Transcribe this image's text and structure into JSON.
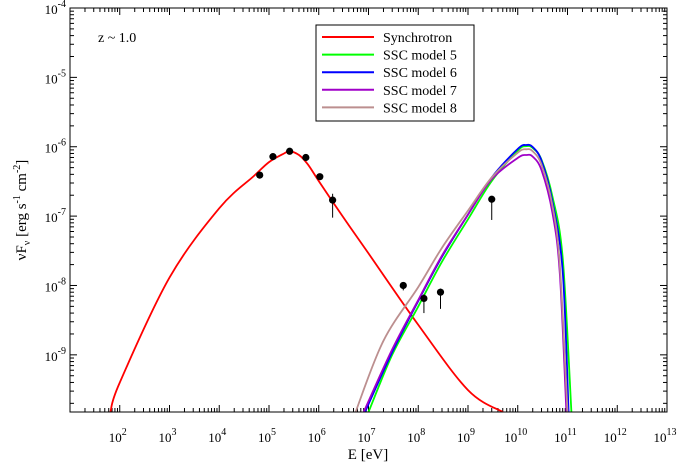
{
  "chart_data": {
    "type": "line",
    "annotation": "z ~ 1.0",
    "xlabel": "E [eV]",
    "ylabel": "νF_ν [erg s^-1 cm^-2]",
    "xscale": "log",
    "yscale": "log",
    "xlim": [
      10.0,
      10000000000000.0
    ],
    "ylim": [
      1.5e-10,
      0.0001
    ],
    "x_tick_labels": [
      "10^2",
      "10^3",
      "10^4",
      "10^5",
      "10^6",
      "10^7",
      "10^8",
      "10^9",
      "10^10",
      "10^11",
      "10^12",
      "10^13"
    ],
    "y_tick_labels": [
      "10^-9",
      "10^-8",
      "10^-7",
      "10^-6",
      "10^-5",
      "10^-4"
    ],
    "legend": "top-center",
    "series": [
      {
        "name": "Synchrotron",
        "color": "#ff0000",
        "x": [
          65.0,
          100.0,
          1000.0,
          10000.0,
          50000.0,
          100000.0,
          200000.0,
          260000.0,
          400000.0,
          600000.0,
          1000000.0,
          3000000.0,
          10000000.0,
          100000000.0,
          1000000000.0,
          5000000000.0
        ],
        "y": [
          1.5e-10,
          4e-10,
          1.3e-08,
          1.3e-07,
          3.8e-07,
          6e-07,
          8e-07,
          8.6e-07,
          7.6e-07,
          5.6e-07,
          3.2e-07,
          1e-07,
          2.9e-08,
          2.7e-09,
          3.1e-10,
          1.5e-10
        ]
      },
      {
        "name": "SSC model 5",
        "color": "#00ff00",
        "x": [
          10000000.0,
          30000000.0,
          100000000.0,
          300000000.0,
          1000000000.0,
          3000000000.0,
          10000000000.0,
          15000000000.0,
          20000000000.0,
          30000000000.0,
          50000000000.0,
          80000000000.0,
          120000000000.0
        ],
        "y": [
          1.5e-10,
          1e-09,
          5e-09,
          2.2e-08,
          9e-08,
          3.2e-07,
          8.8e-07,
          1.02e-06,
          9.6e-07,
          6.5e-07,
          1.9e-07,
          2.5e-08,
          1.5e-10
        ]
      },
      {
        "name": "SSC model 6",
        "color": "#0000ff",
        "x": [
          8500000.0,
          30000000.0,
          100000000.0,
          300000000.0,
          1000000000.0,
          3000000000.0,
          10000000000.0,
          15000000000.0,
          20000000000.0,
          30000000000.0,
          50000000000.0,
          80000000000.0,
          105000000000.0
        ],
        "y": [
          1.5e-10,
          1.1e-09,
          6e-09,
          2.6e-08,
          1.05e-07,
          3.6e-07,
          9.3e-07,
          1.06e-06,
          9.9e-07,
          6.3e-07,
          1.6e-07,
          1.6e-08,
          1.5e-10
        ]
      },
      {
        "name": "SSC model 7",
        "color": "#a000c8",
        "x": [
          8000000.0,
          30000000.0,
          100000000.0,
          300000000.0,
          1000000000.0,
          3000000000.0,
          10000000000.0,
          15000000000.0,
          20000000000.0,
          30000000000.0,
          50000000000.0,
          70000000000.0,
          95000000000.0
        ],
        "y": [
          1.5e-10,
          1.2e-09,
          6.2e-09,
          2.7e-08,
          1.05e-07,
          3.4e-07,
          6.9e-07,
          7.6e-07,
          7.2e-07,
          4.6e-07,
          1.1e-07,
          1.5e-08,
          1.5e-10
        ]
      },
      {
        "name": "SSC model 8",
        "color": "#bc8f8f",
        "x": [
          5500000.0,
          20000000.0,
          100000000.0,
          300000000.0,
          1000000000.0,
          3000000000.0,
          10000000000.0,
          15000000000.0,
          20000000000.0,
          30000000000.0,
          50000000000.0,
          70000000000.0,
          100000000000.0
        ],
        "y": [
          1.5e-10,
          1.6e-09,
          9.5e-09,
          3.5e-08,
          1.2e-07,
          3.6e-07,
          8.2e-07,
          9.2e-07,
          8.6e-07,
          5.5e-07,
          1.4e-07,
          2e-08,
          1.5e-10
        ]
      }
    ],
    "observations": {
      "name": "data",
      "color": "#000000",
      "x": [
        65000.0,
        120000.0,
        260000.0,
        550000.0,
        1050000.0,
        1900000.0,
        50000000.0,
        130000000.0,
        280000000.0,
        3000000000.0
      ],
      "y": [
        3.9e-07,
        7.2e-07,
        8.6e-07,
        7e-07,
        3.7e-07,
        1.7e-07,
        1e-08,
        6.5e-09,
        8e-09,
        1.75e-07
      ],
      "y_low": [
        3.9e-07,
        7.2e-07,
        8.6e-07,
        7e-07,
        3.7e-07,
        9.5e-08,
        8.5e-09,
        4e-09,
        4.6e-09,
        8.8e-08
      ],
      "y_high": [
        3.9e-07,
        7.2e-07,
        8.6e-07,
        7e-07,
        3.7e-07,
        2.1e-07,
        1.1e-08,
        7.5e-09,
        9e-09,
        1.9e-07
      ]
    }
  }
}
